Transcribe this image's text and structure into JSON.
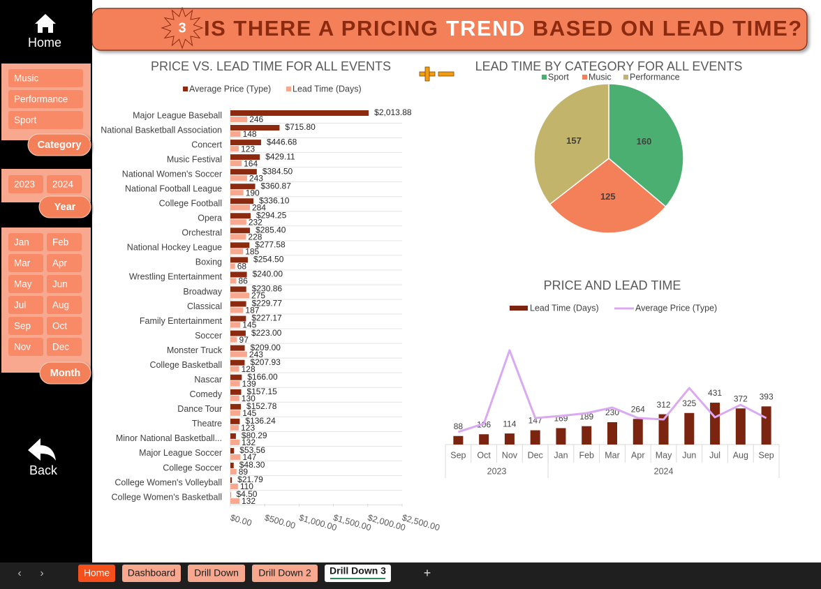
{
  "sidebar": {
    "home": "Home",
    "category_slicer": {
      "items": [
        "Music",
        "Performance",
        "Sport"
      ],
      "label": "Category"
    },
    "year_slicer": {
      "items": [
        "2023",
        "2024"
      ],
      "label": "Year"
    },
    "month_slicer": {
      "items": [
        "Jan",
        "Feb",
        "Mar",
        "Apr",
        "May",
        "Jun",
        "Jul",
        "Aug",
        "Sep",
        "Oct",
        "Nov",
        "Dec"
      ],
      "label": "Month"
    },
    "back": "Back"
  },
  "header": {
    "badge": "3",
    "title_parts": [
      "IS THERE A PRICING ",
      "TREND",
      " BASED ON LEAD TIME?"
    ]
  },
  "chart_data": [
    {
      "type": "hbar",
      "title": "PRICE VS. LEAD TIME FOR ALL EVENTS",
      "categories": [
        "Major League Baseball",
        "National Basketball Association",
        "Concert",
        "Music Festival",
        "National Women's Soccer",
        "National Football League",
        "College Football",
        "Opera",
        "Orchestral",
        "National Hockey League",
        "Boxing",
        "Wrestling Entertainment",
        "Broadway",
        "Classical",
        "Family Entertainment",
        "Soccer",
        "Monster Truck",
        "College Basketball",
        "Nascar",
        "Comedy",
        "Dance Tour",
        "Theatre",
        "Minor National Basketball...",
        "Major League Soccer",
        "College Soccer",
        "College Women's Volleyball",
        "College Women's Basketball"
      ],
      "series": [
        {
          "name": "Average Price (Type)",
          "color": "#8b2a0e",
          "values": [
            2013.88,
            715.8,
            446.68,
            429.11,
            384.5,
            360.87,
            336.1,
            294.25,
            285.4,
            277.58,
            254.5,
            240.0,
            230.86,
            229.77,
            227.17,
            223.0,
            209.0,
            207.93,
            166.0,
            157.15,
            152.78,
            136.24,
            80.29,
            53.56,
            48.3,
            21.79,
            4.5
          ],
          "value_labels": [
            "$2,013.88",
            "$715.80",
            "$446.68",
            "$429.11",
            "$384.50",
            "$360.87",
            "$336.10",
            "$294.25",
            "$285.40",
            "$277.58",
            "$254.50",
            "$240.00",
            "$230.86",
            "$229.77",
            "$227.17",
            "$223.00",
            "$209.00",
            "$207.93",
            "$166.00",
            "$157.15",
            "$152.78",
            "$136.24",
            "$80.29",
            "$53.56",
            "$48.30",
            "$21.79",
            "$4.50"
          ]
        },
        {
          "name": "Lead Time (Days)",
          "color": "#f7a88e",
          "values": [
            246,
            148,
            123,
            164,
            243,
            190,
            284,
            232,
            228,
            185,
            68,
            86,
            275,
            187,
            145,
            97,
            243,
            128,
            139,
            130,
            145,
            123,
            132,
            147,
            89,
            110,
            132
          ]
        }
      ],
      "xlim": [
        0,
        2500
      ],
      "xticks": [
        {
          "value": 0,
          "label": "$0.00"
        },
        {
          "value": 500,
          "label": "$500.00"
        },
        {
          "value": 1000,
          "label": "$1,000.00"
        },
        {
          "value": 1500,
          "label": "$1,500.00"
        },
        {
          "value": 2000,
          "label": "$2,000.00"
        },
        {
          "value": 2500,
          "label": "$2,500.00"
        }
      ],
      "legend": "top"
    },
    {
      "type": "pie",
      "title": "LEAD TIME BY CATEGORY FOR ALL EVENTS",
      "categories": [
        "Sport",
        "Music",
        "Performance"
      ],
      "values": [
        160,
        125,
        157
      ],
      "colors": [
        "#4caf72",
        "#f4805a",
        "#c2b46a"
      ],
      "legend": "top"
    },
    {
      "type": "combo",
      "title": "PRICE AND LEAD TIME",
      "categories": [
        "Sep",
        "Oct",
        "Nov",
        "Dec",
        "Jan",
        "Feb",
        "Mar",
        "Apr",
        "May",
        "Jun",
        "Jul",
        "Aug",
        "Sep"
      ],
      "x_groups": [
        {
          "label": "2023",
          "count": 4
        },
        {
          "label": "2024",
          "count": 9
        }
      ],
      "series": [
        {
          "name": "Lead Time (Days)",
          "type": "bar",
          "color": "#7b2410",
          "values": [
            88,
            106,
            114,
            147,
            169,
            189,
            230,
            264,
            312,
            325,
            431,
            372,
            393
          ]
        },
        {
          "name": "Average Price (Type)",
          "type": "line",
          "axis": "y2",
          "color": "#dba8f2",
          "values": [
            169,
            281,
            1266,
            356,
            384,
            422,
            497,
            356,
            337,
            759,
            366,
            534,
            356
          ]
        }
      ],
      "ylim": [
        0,
        1150
      ],
      "y2lim": [
        0,
        1500
      ],
      "legend": "top"
    }
  ],
  "tabs": [
    "Home",
    "Dashboard",
    "Drill Down",
    "Drill Down 2",
    "Drill Down 3"
  ]
}
